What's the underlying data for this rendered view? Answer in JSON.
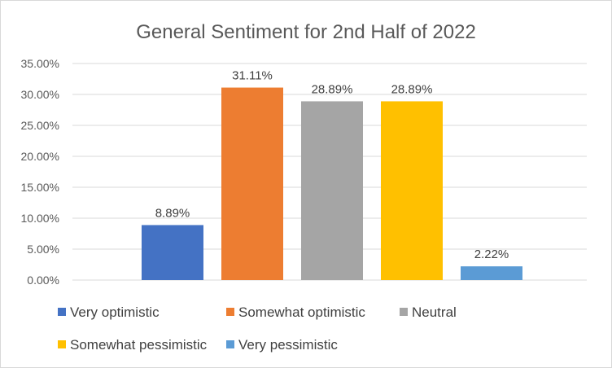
{
  "chart_data": {
    "type": "bar",
    "title": "General Sentiment for 2nd Half of 2022",
    "xlabel": "",
    "ylabel": "",
    "ylim": [
      0,
      35
    ],
    "y_tick_step": 5,
    "y_tick_labels": [
      "0.00%",
      "5.00%",
      "10.00%",
      "15.00%",
      "20.00%",
      "25.00%",
      "30.00%",
      "35.00%"
    ],
    "grid": true,
    "legend_position": "bottom",
    "series": [
      {
        "name": "Very optimistic",
        "value": 8.89,
        "label": "8.89%",
        "color": "#4472C4"
      },
      {
        "name": "Somewhat optimistic",
        "value": 31.11,
        "label": "31.11%",
        "color": "#ED7D31"
      },
      {
        "name": "Neutral",
        "value": 28.89,
        "label": "28.89%",
        "color": "#A5A5A5"
      },
      {
        "name": "Somewhat pessimistic",
        "value": 28.89,
        "label": "28.89%",
        "color": "#FFC000"
      },
      {
        "name": "Very pessimistic",
        "value": 2.22,
        "label": "2.22%",
        "color": "#5B9BD5"
      }
    ]
  }
}
